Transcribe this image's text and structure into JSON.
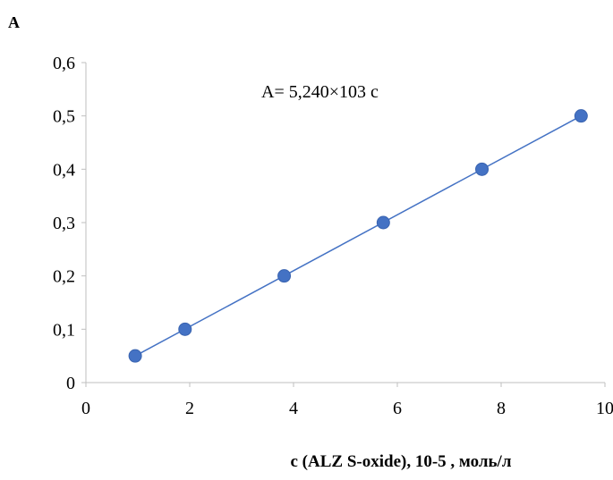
{
  "chart_data": {
    "type": "scatter",
    "ylabel": "A",
    "xlabel": "c (ALZ S-oxide), 10-5 , моль/л",
    "annotation": "A= 5,240×103 c",
    "xlim": [
      0,
      10
    ],
    "ylim": [
      0,
      0.6
    ],
    "x_ticks": [
      0,
      2,
      4,
      6,
      8,
      10
    ],
    "x_tick_labels": [
      "0",
      "2",
      "4",
      "6",
      "8",
      "10"
    ],
    "y_ticks": [
      0,
      0.1,
      0.2,
      0.3,
      0.4,
      0.5,
      0.6
    ],
    "y_tick_labels": [
      "0",
      "0,1",
      "0,2",
      "0,3",
      "0,4",
      "0,5",
      "0,6"
    ],
    "grid": false,
    "series": [
      {
        "x": [
          0.95,
          1.91,
          3.82,
          5.73,
          7.63,
          9.54
        ],
        "y": [
          0.05,
          0.1,
          0.2,
          0.3,
          0.4,
          0.5
        ],
        "color": "#4472C4"
      }
    ],
    "trendline": {
      "x": [
        0.95,
        9.54
      ],
      "y": [
        0.05,
        0.5
      ],
      "color": "#4472C4"
    }
  }
}
